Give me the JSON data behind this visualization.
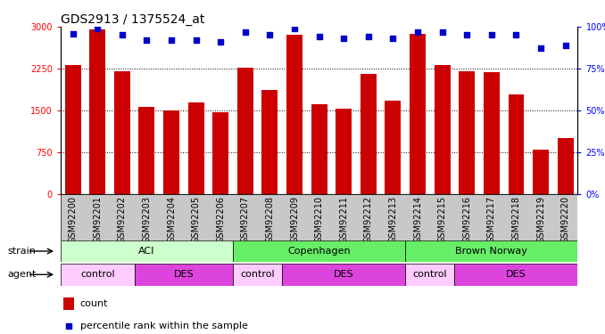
{
  "title": "GDS2913 / 1375524_at",
  "samples": [
    "GSM92200",
    "GSM92201",
    "GSM92202",
    "GSM92203",
    "GSM92204",
    "GSM92205",
    "GSM92206",
    "GSM92207",
    "GSM92208",
    "GSM92209",
    "GSM92210",
    "GSM92211",
    "GSM92212",
    "GSM92213",
    "GSM92214",
    "GSM92215",
    "GSM92216",
    "GSM92217",
    "GSM92218",
    "GSM92219",
    "GSM92220"
  ],
  "counts": [
    2310,
    2960,
    2200,
    1560,
    1500,
    1640,
    1470,
    2260,
    1870,
    2860,
    1610,
    1530,
    2150,
    1680,
    2870,
    2310,
    2200,
    2180,
    1780,
    800,
    1000
  ],
  "percentiles": [
    96,
    99,
    95,
    92,
    92,
    92,
    91,
    97,
    95,
    99,
    94,
    93,
    94,
    93,
    97,
    97,
    95,
    95,
    95,
    87,
    89
  ],
  "bar_color": "#cc0000",
  "dot_color": "#0000cc",
  "ylim_left": [
    0,
    3000
  ],
  "ylim_right": [
    0,
    100
  ],
  "yticks_left": [
    0,
    750,
    1500,
    2250,
    3000
  ],
  "yticks_right": [
    0,
    25,
    50,
    75,
    100
  ],
  "strain_groups": [
    {
      "label": "ACI",
      "start": 0,
      "end": 6,
      "color": "#ccffcc"
    },
    {
      "label": "Copenhagen",
      "start": 7,
      "end": 13,
      "color": "#66ee66"
    },
    {
      "label": "Brown Norway",
      "start": 14,
      "end": 20,
      "color": "#66ee66"
    }
  ],
  "agent_groups": [
    {
      "label": "control",
      "start": 0,
      "end": 2,
      "color": "#ffccff"
    },
    {
      "label": "DES",
      "start": 3,
      "end": 6,
      "color": "#dd44dd"
    },
    {
      "label": "control",
      "start": 7,
      "end": 8,
      "color": "#ffccff"
    },
    {
      "label": "DES",
      "start": 9,
      "end": 13,
      "color": "#dd44dd"
    },
    {
      "label": "control",
      "start": 14,
      "end": 15,
      "color": "#ffccff"
    },
    {
      "label": "DES",
      "start": 16,
      "end": 20,
      "color": "#dd44dd"
    }
  ],
  "strain_label": "strain",
  "agent_label": "agent",
  "legend_count_label": "count",
  "legend_percentile_label": "percentile rank within the sample",
  "plot_bg_color": "#ffffff",
  "xtick_bg_color": "#c8c8c8",
  "title_fontsize": 10,
  "tick_fontsize": 7,
  "label_fontsize": 8
}
